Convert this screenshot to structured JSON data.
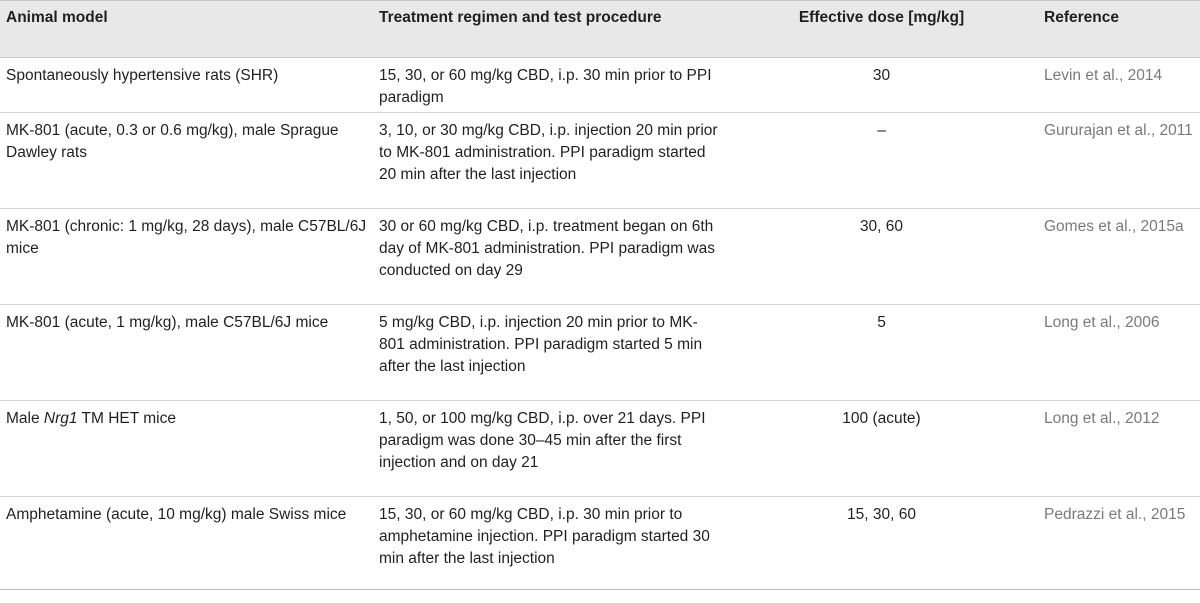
{
  "table": {
    "headers": {
      "animal_model": "Animal model",
      "treatment": "Treatment regimen and test procedure",
      "dose": "Effective dose [mg/kg]",
      "reference": "Reference"
    },
    "rows": [
      {
        "animal_model": "Spontaneously hypertensive rats (SHR)",
        "treatment": "15, 30, or 60 mg/kg CBD, i.p. 30 min prior to PPI paradigm",
        "dose": "30",
        "reference": "Levin et al., 2014"
      },
      {
        "animal_model": "MK-801 (acute, 0.3 or 0.6 mg/kg), male Sprague Dawley rats",
        "treatment": "3, 10, or 30 mg/kg CBD, i.p. injection 20 min prior to MK-801 administration. PPI paradigm started 20 min after the last injection",
        "dose": "–",
        "reference": "Gururajan et al., 2011"
      },
      {
        "animal_model": "MK-801 (chronic: 1 mg/kg, 28 days), male C57BL/6J mice",
        "treatment": "30 or 60 mg/kg CBD, i.p. treatment began on 6th day of MK-801 administration. PPI paradigm was conducted on day 29",
        "dose": "30, 60",
        "reference": "Gomes et al., 2015a"
      },
      {
        "animal_model": "MK-801 (acute, 1 mg/kg), male C57BL/6J mice",
        "treatment": "5 mg/kg CBD, i.p. injection 20 min prior to MK-801 administration. PPI paradigm started 5 min after the last injection",
        "dose": "5",
        "reference": "Long et al., 2006"
      },
      {
        "animal_model_prefix": "Male ",
        "animal_model_italic": "Nrg1",
        "animal_model_suffix": " TM HET mice",
        "treatment": "1, 50, or 100 mg/kg CBD, i.p. over 21 days. PPI paradigm was done 30–45 min after the first injection and on day 21",
        "dose": "100 (acute)",
        "reference": "Long et al., 2012"
      },
      {
        "animal_model": "Amphetamine (acute, 10 mg/kg) male Swiss mice",
        "treatment": "15, 30, or 60 mg/kg CBD, i.p. 30 min prior to amphetamine injection. PPI paradigm started 30 min after the last injection",
        "dose": "15, 30, 60",
        "reference": "Pedrazzi et al., 2015"
      }
    ]
  }
}
